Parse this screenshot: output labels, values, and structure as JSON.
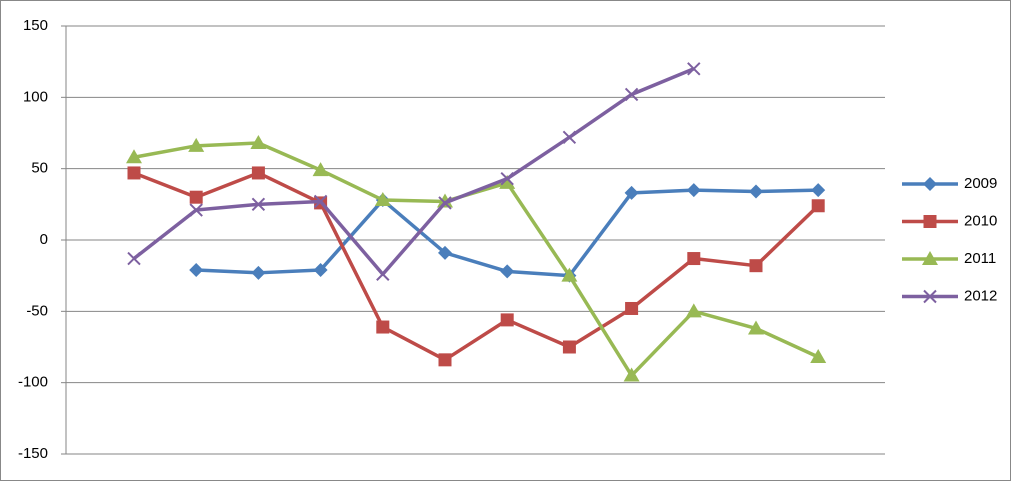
{
  "chart_data": {
    "type": "line",
    "categories": [
      null,
      null,
      null,
      null,
      null,
      null,
      null,
      null,
      null,
      null,
      null,
      null
    ],
    "series": [
      {
        "name": "2009",
        "color": "#4a7ebb",
        "marker": "diamond",
        "values": [
          null,
          -21,
          -23,
          -21,
          28,
          -9,
          -22,
          -25,
          33,
          35,
          34,
          35
        ]
      },
      {
        "name": "2010",
        "color": "#be4b48",
        "marker": "square",
        "values": [
          47,
          30,
          47,
          26,
          -61,
          -84,
          -56,
          -75,
          -48,
          -13,
          -18,
          24
        ]
      },
      {
        "name": "2011",
        "color": "#98b954",
        "marker": "triangle",
        "values": [
          58,
          66,
          68,
          49,
          28,
          27,
          40,
          -25,
          -95,
          -50,
          -62,
          -82
        ]
      },
      {
        "name": "2012",
        "color": "#7d60a0",
        "marker": "x",
        "values": [
          -13,
          21,
          25,
          27,
          -24,
          26,
          43,
          72,
          102,
          120,
          null,
          null
        ]
      }
    ],
    "ylim": [
      -150,
      150
    ],
    "yticks": [
      -150,
      -100,
      -50,
      0,
      50,
      100,
      150
    ],
    "grid": true,
    "legend": "right"
  }
}
